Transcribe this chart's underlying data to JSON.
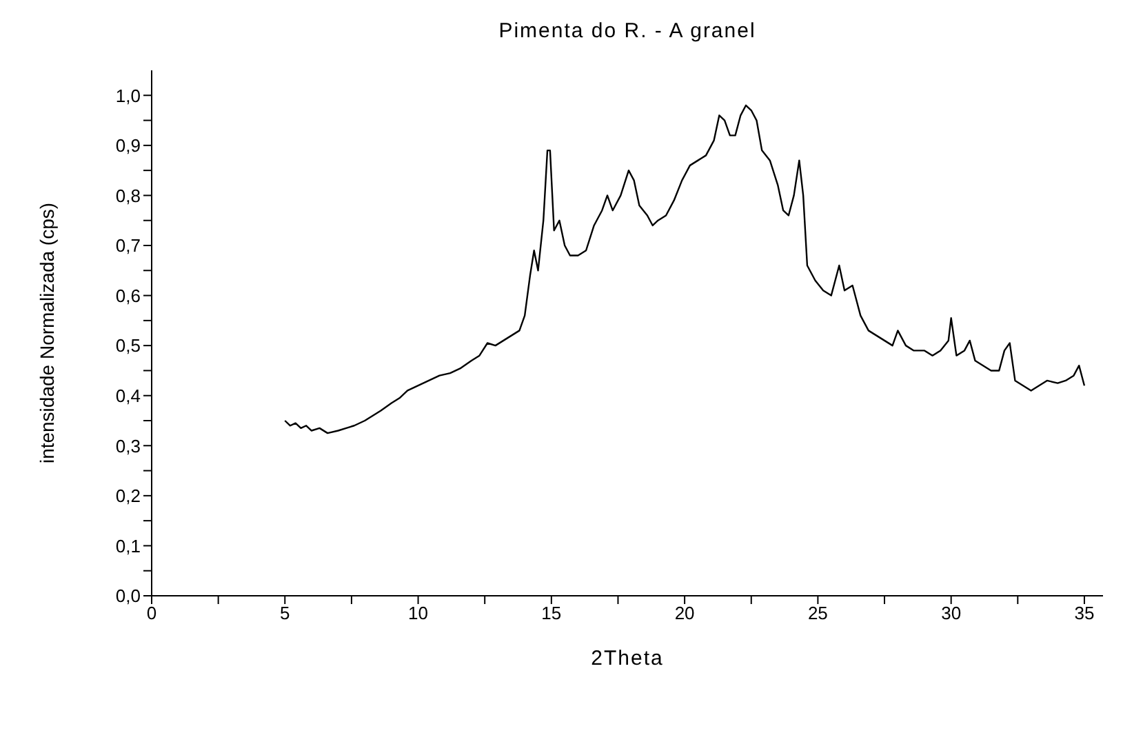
{
  "chart_data": {
    "type": "line",
    "title": "Pimenta do R. - A granel",
    "xlabel": "2Theta",
    "ylabel": "intensidade Normalizada (cps)",
    "x": [
      5.0,
      5.2,
      5.4,
      5.6,
      5.8,
      6.0,
      6.3,
      6.6,
      7.0,
      7.3,
      7.6,
      8.0,
      8.3,
      8.6,
      9.0,
      9.3,
      9.6,
      10.0,
      10.4,
      10.8,
      11.2,
      11.6,
      12.0,
      12.3,
      12.6,
      12.9,
      13.2,
      13.5,
      13.8,
      14.0,
      14.2,
      14.35,
      14.5,
      14.7,
      14.85,
      14.95,
      15.1,
      15.3,
      15.5,
      15.7,
      16.0,
      16.3,
      16.6,
      16.9,
      17.1,
      17.3,
      17.6,
      17.9,
      18.1,
      18.3,
      18.6,
      18.8,
      19.0,
      19.3,
      19.6,
      19.9,
      20.2,
      20.5,
      20.8,
      21.1,
      21.3,
      21.5,
      21.7,
      21.9,
      22.1,
      22.3,
      22.5,
      22.7,
      22.9,
      23.2,
      23.5,
      23.7,
      23.9,
      24.1,
      24.3,
      24.45,
      24.6,
      24.9,
      25.2,
      25.5,
      25.8,
      26.0,
      26.3,
      26.6,
      26.9,
      27.2,
      27.5,
      27.8,
      28.0,
      28.3,
      28.6,
      29.0,
      29.3,
      29.6,
      29.9,
      30.0,
      30.2,
      30.5,
      30.7,
      30.9,
      31.2,
      31.5,
      31.8,
      32.0,
      32.2,
      32.4,
      32.7,
      33.0,
      33.3,
      33.6,
      34.0,
      34.3,
      34.6,
      34.8,
      35.0
    ],
    "series": [
      {
        "color": "#000000",
        "values": [
          0.35,
          0.34,
          0.345,
          0.335,
          0.34,
          0.33,
          0.335,
          0.325,
          0.33,
          0.335,
          0.34,
          0.35,
          0.36,
          0.37,
          0.385,
          0.395,
          0.41,
          0.42,
          0.43,
          0.44,
          0.445,
          0.455,
          0.47,
          0.48,
          0.505,
          0.5,
          0.51,
          0.52,
          0.53,
          0.56,
          0.64,
          0.69,
          0.65,
          0.75,
          0.89,
          0.89,
          0.73,
          0.75,
          0.7,
          0.68,
          0.68,
          0.69,
          0.74,
          0.77,
          0.8,
          0.77,
          0.8,
          0.85,
          0.83,
          0.78,
          0.76,
          0.74,
          0.75,
          0.76,
          0.79,
          0.83,
          0.86,
          0.87,
          0.88,
          0.91,
          0.96,
          0.95,
          0.92,
          0.92,
          0.96,
          0.98,
          0.97,
          0.95,
          0.89,
          0.87,
          0.82,
          0.77,
          0.76,
          0.8,
          0.87,
          0.8,
          0.66,
          0.63,
          0.61,
          0.6,
          0.66,
          0.61,
          0.62,
          0.56,
          0.53,
          0.52,
          0.51,
          0.5,
          0.53,
          0.5,
          0.49,
          0.49,
          0.48,
          0.49,
          0.51,
          0.555,
          0.48,
          0.49,
          0.51,
          0.47,
          0.46,
          0.45,
          0.45,
          0.49,
          0.505,
          0.43,
          0.42,
          0.41,
          0.42,
          0.43,
          0.425,
          0.43,
          0.44,
          0.46,
          0.42
        ]
      }
    ],
    "xlim": [
      0,
      35.7
    ],
    "ylim": [
      0,
      1.05
    ],
    "xticks": [
      0,
      {
        "value": 2.5,
        "label": null
      },
      5,
      {
        "value": 7.5,
        "label": null
      },
      10,
      {
        "value": 12.5,
        "label": null
      },
      15,
      {
        "value": 17.5,
        "label": null
      },
      20,
      {
        "value": 22.5,
        "label": null
      },
      25,
      {
        "value": 27.5,
        "label": null
      },
      30,
      {
        "value": 32.5,
        "label": null
      },
      35
    ],
    "yticks": [
      {
        "value": 0,
        "label": "0,0"
      },
      {
        "value": 0.05,
        "label": null
      },
      {
        "value": 0.1,
        "label": "0,1"
      },
      {
        "value": 0.15,
        "label": null
      },
      {
        "value": 0.2,
        "label": "0,2"
      },
      {
        "value": 0.25,
        "label": null
      },
      {
        "value": 0.3,
        "label": "0,3"
      },
      {
        "value": 0.35,
        "label": null
      },
      {
        "value": 0.4,
        "label": "0,4"
      },
      {
        "value": 0.45,
        "label": null
      },
      {
        "value": 0.5,
        "label": "0,5"
      },
      {
        "value": 0.55,
        "label": null
      },
      {
        "value": 0.6,
        "label": "0,6"
      },
      {
        "value": 0.65,
        "label": null
      },
      {
        "value": 0.7,
        "label": "0,7"
      },
      {
        "value": 0.75,
        "label": null
      },
      {
        "value": 0.8,
        "label": "0,8"
      },
      {
        "value": 0.85,
        "label": null
      },
      {
        "value": 0.9,
        "label": "0,9"
      },
      {
        "value": 0.95,
        "label": null
      },
      {
        "value": 1.0,
        "label": "1,0"
      }
    ],
    "grid": false,
    "legend": false,
    "marker": "none",
    "line_style": "solid"
  }
}
